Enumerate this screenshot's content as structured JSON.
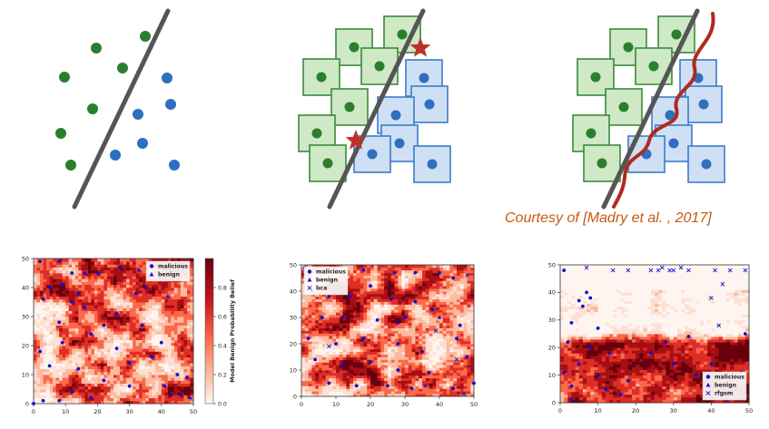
{
  "caption": {
    "courtesy": "Courtesy of [Madry et al. , 2017]"
  },
  "colors": {
    "malicious": "#2a7f2e",
    "benign": "#2f6fbf",
    "boundary": "#555555",
    "box_green_fill": "#cfe8c6",
    "box_green_stroke": "#3a8a3a",
    "box_blue_fill": "#cfe0f5",
    "box_blue_stroke": "#3a7cc8",
    "star": "#c0302a",
    "curve": "#b02a20"
  },
  "chart_data": [
    {
      "type": "heatmap",
      "panel": "left",
      "title": "",
      "x_ticks": [
        "0",
        "10",
        "20",
        "30",
        "40",
        "50"
      ],
      "y_ticks": [
        "0",
        "10",
        "20",
        "30",
        "40",
        "50"
      ],
      "xlim": [
        0,
        50
      ],
      "ylim": [
        0,
        50
      ],
      "legend": [
        "malicious",
        "benign"
      ],
      "legend_position": "top-right",
      "colorbar": {
        "label": "Model Benign Probability Belief",
        "ticks": [
          "0.0",
          "0.2",
          "0.4",
          "0.6",
          "0.8"
        ]
      },
      "malicious_points": [
        [
          2,
          49
        ],
        [
          8,
          49
        ],
        [
          12,
          45
        ],
        [
          16,
          45
        ],
        [
          20,
          45
        ],
        [
          27,
          47
        ],
        [
          5,
          40
        ],
        [
          9,
          41
        ],
        [
          14,
          38
        ],
        [
          3,
          36
        ],
        [
          12,
          35
        ],
        [
          16,
          33
        ],
        [
          8,
          28
        ],
        [
          22,
          27
        ],
        [
          18,
          24
        ],
        [
          9,
          21
        ],
        [
          2,
          18
        ],
        [
          26,
          19
        ],
        [
          37,
          16
        ],
        [
          30,
          14
        ],
        [
          5,
          13
        ],
        [
          14,
          12
        ],
        [
          22,
          8
        ],
        [
          30,
          6
        ],
        [
          12,
          4
        ],
        [
          18,
          2
        ],
        [
          43,
          3
        ],
        [
          48,
          9
        ],
        [
          41,
          6
        ],
        [
          46,
          3
        ],
        [
          0,
          0
        ],
        [
          8,
          1
        ],
        [
          3,
          1
        ],
        [
          45,
          10
        ],
        [
          34,
          27
        ],
        [
          40,
          21
        ],
        [
          26,
          31
        ],
        [
          32,
          38
        ]
      ],
      "benign_points": [
        [
          33,
          46
        ],
        [
          35,
          40
        ],
        [
          42,
          37
        ],
        [
          44,
          44
        ],
        [
          49,
          2
        ]
      ]
    },
    {
      "type": "heatmap",
      "panel": "middle",
      "title": "",
      "x_ticks": [
        "0",
        "10",
        "20",
        "30",
        "40",
        "50"
      ],
      "y_ticks": [
        "0",
        "10",
        "20",
        "30",
        "40",
        "50"
      ],
      "xlim": [
        0,
        50
      ],
      "ylim": [
        0,
        50
      ],
      "legend": [
        "malicious",
        "benign",
        "bca"
      ],
      "legend_position": "top-left",
      "malicious_points": [
        [
          1,
          49
        ],
        [
          5,
          48
        ],
        [
          10,
          47
        ],
        [
          18,
          48
        ],
        [
          27,
          47
        ],
        [
          33,
          47
        ],
        [
          40,
          47
        ],
        [
          44,
          45
        ],
        [
          3,
          40
        ],
        [
          8,
          38
        ],
        [
          14,
          38
        ],
        [
          20,
          42
        ],
        [
          26,
          37
        ],
        [
          33,
          36
        ],
        [
          6,
          30
        ],
        [
          12,
          30
        ],
        [
          22,
          29
        ],
        [
          30,
          30
        ],
        [
          38,
          33
        ],
        [
          46,
          27
        ],
        [
          2,
          22
        ],
        [
          10,
          20
        ],
        [
          18,
          22
        ],
        [
          28,
          20
        ],
        [
          35,
          17
        ],
        [
          45,
          22
        ],
        [
          4,
          14
        ],
        [
          12,
          12
        ],
        [
          20,
          13
        ],
        [
          28,
          10
        ],
        [
          37,
          9
        ],
        [
          48,
          15
        ],
        [
          8,
          5
        ],
        [
          16,
          4
        ],
        [
          25,
          4
        ],
        [
          32,
          3
        ],
        [
          44,
          3
        ],
        [
          50,
          5
        ]
      ],
      "benign_points": [
        [
          40,
          30
        ],
        [
          28,
          28
        ]
      ],
      "bca_points": [
        [
          48,
          46
        ],
        [
          39,
          25
        ],
        [
          8,
          19
        ],
        [
          36,
          4
        ],
        [
          47,
          1
        ],
        [
          45,
          14
        ]
      ]
    },
    {
      "type": "heatmap",
      "panel": "right",
      "title": "",
      "x_ticks": [
        "0",
        "10",
        "20",
        "30",
        "40",
        "50"
      ],
      "y_ticks": [
        "0",
        "10",
        "20",
        "30",
        "40",
        "50"
      ],
      "xlim": [
        0,
        50
      ],
      "ylim": [
        0,
        50
      ],
      "legend": [
        "malicious",
        "benign",
        "rfgsm"
      ],
      "legend_position": "bottom-right",
      "malicious_points": [
        [
          1,
          48
        ],
        [
          5,
          37
        ],
        [
          7,
          40
        ],
        [
          8,
          38
        ],
        [
          6,
          35
        ],
        [
          3,
          29
        ],
        [
          10,
          27
        ],
        [
          2,
          22
        ],
        [
          8,
          20
        ],
        [
          13,
          18
        ],
        [
          5,
          14
        ],
        [
          1,
          11
        ],
        [
          10,
          10
        ],
        [
          3,
          6
        ],
        [
          12,
          5
        ],
        [
          18,
          8
        ],
        [
          24,
          18
        ],
        [
          30,
          14
        ],
        [
          36,
          10
        ],
        [
          40,
          14
        ],
        [
          46,
          6
        ],
        [
          49,
          25
        ],
        [
          48,
          11
        ],
        [
          3,
          1
        ],
        [
          16,
          3
        ],
        [
          42,
          4
        ],
        [
          28,
          22
        ],
        [
          34,
          24
        ]
      ],
      "benign_points": [
        [
          44,
          1
        ]
      ],
      "rfgsm_points": [
        [
          7,
          49
        ],
        [
          14,
          48
        ],
        [
          18,
          48
        ],
        [
          24,
          48
        ],
        [
          27,
          49
        ],
        [
          30,
          48
        ],
        [
          32,
          49
        ],
        [
          34,
          48
        ],
        [
          41,
          48
        ],
        [
          45,
          48
        ],
        [
          49,
          48
        ],
        [
          29,
          48
        ],
        [
          26,
          48
        ],
        [
          40,
          38
        ],
        [
          43,
          43
        ],
        [
          42,
          28
        ]
      ]
    }
  ]
}
